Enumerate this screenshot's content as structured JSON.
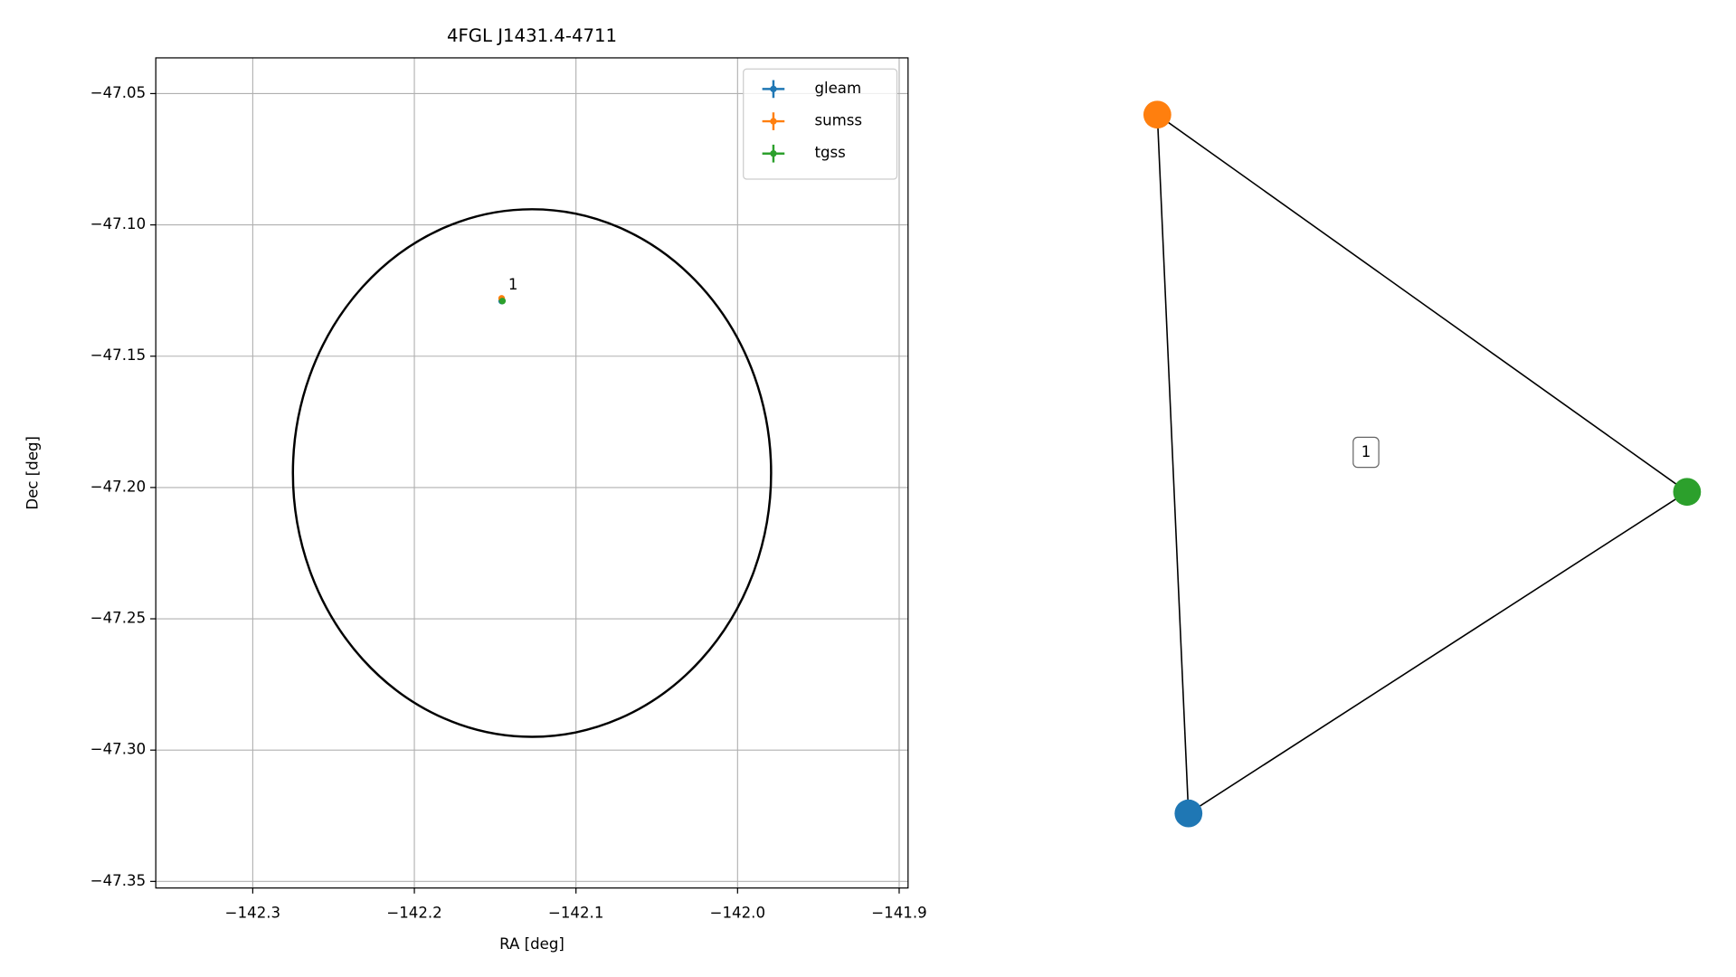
{
  "chart_data": [
    {
      "type": "scatter",
      "title": "4FGL J1431.4-4711",
      "xlabel": "RA [deg]",
      "ylabel": "Dec [deg]",
      "xlim": [
        -142.36,
        -141.8945
      ],
      "ylim": [
        -47.3525,
        -47.0364
      ],
      "xticks": [
        {
          "value": -142.3,
          "label": "−142.3"
        },
        {
          "value": -142.2,
          "label": "−142.2"
        },
        {
          "value": -142.1,
          "label": "−142.1"
        },
        {
          "value": -142.0,
          "label": "−142.0"
        },
        {
          "value": -141.9,
          "label": "−141.9"
        }
      ],
      "yticks": [
        {
          "value": -47.05,
          "label": "−47.05"
        },
        {
          "value": -47.1,
          "label": "−47.10"
        },
        {
          "value": -47.15,
          "label": "−47.15"
        },
        {
          "value": -47.2,
          "label": "−47.20"
        },
        {
          "value": -47.25,
          "label": "−47.25"
        },
        {
          "value": -47.3,
          "label": "−47.30"
        },
        {
          "value": -47.35,
          "label": "−47.35"
        }
      ],
      "grid": true,
      "legend": "upper right",
      "series": [
        {
          "name": "gleam",
          "color": "#1f77b4",
          "x": [
            -142.146
          ],
          "values": [
            -47.129
          ]
        },
        {
          "name": "sumss",
          "color": "#ff7f0e",
          "x": [
            -142.146
          ],
          "values": [
            -47.128
          ]
        },
        {
          "name": "tgss",
          "color": "#2ca02c",
          "x": [
            -142.1455
          ],
          "values": [
            -47.129
          ]
        }
      ],
      "annotation": "1",
      "ellipse": {
        "center": [
          -142.1272,
          -47.1945
        ],
        "width": 0.2959,
        "height": 0.2009,
        "color": "#000000"
      }
    },
    {
      "type": "network",
      "nodes": [
        {
          "name": "gleam",
          "color": "#1f77b4"
        },
        {
          "name": "sumss",
          "color": "#ff7f0e"
        },
        {
          "name": "tgss",
          "color": "#2ca02c"
        }
      ],
      "edges": [
        [
          "gleam",
          "sumss"
        ],
        [
          "sumss",
          "tgss"
        ],
        [
          "tgss",
          "gleam"
        ]
      ],
      "cluster_label": "1"
    }
  ]
}
